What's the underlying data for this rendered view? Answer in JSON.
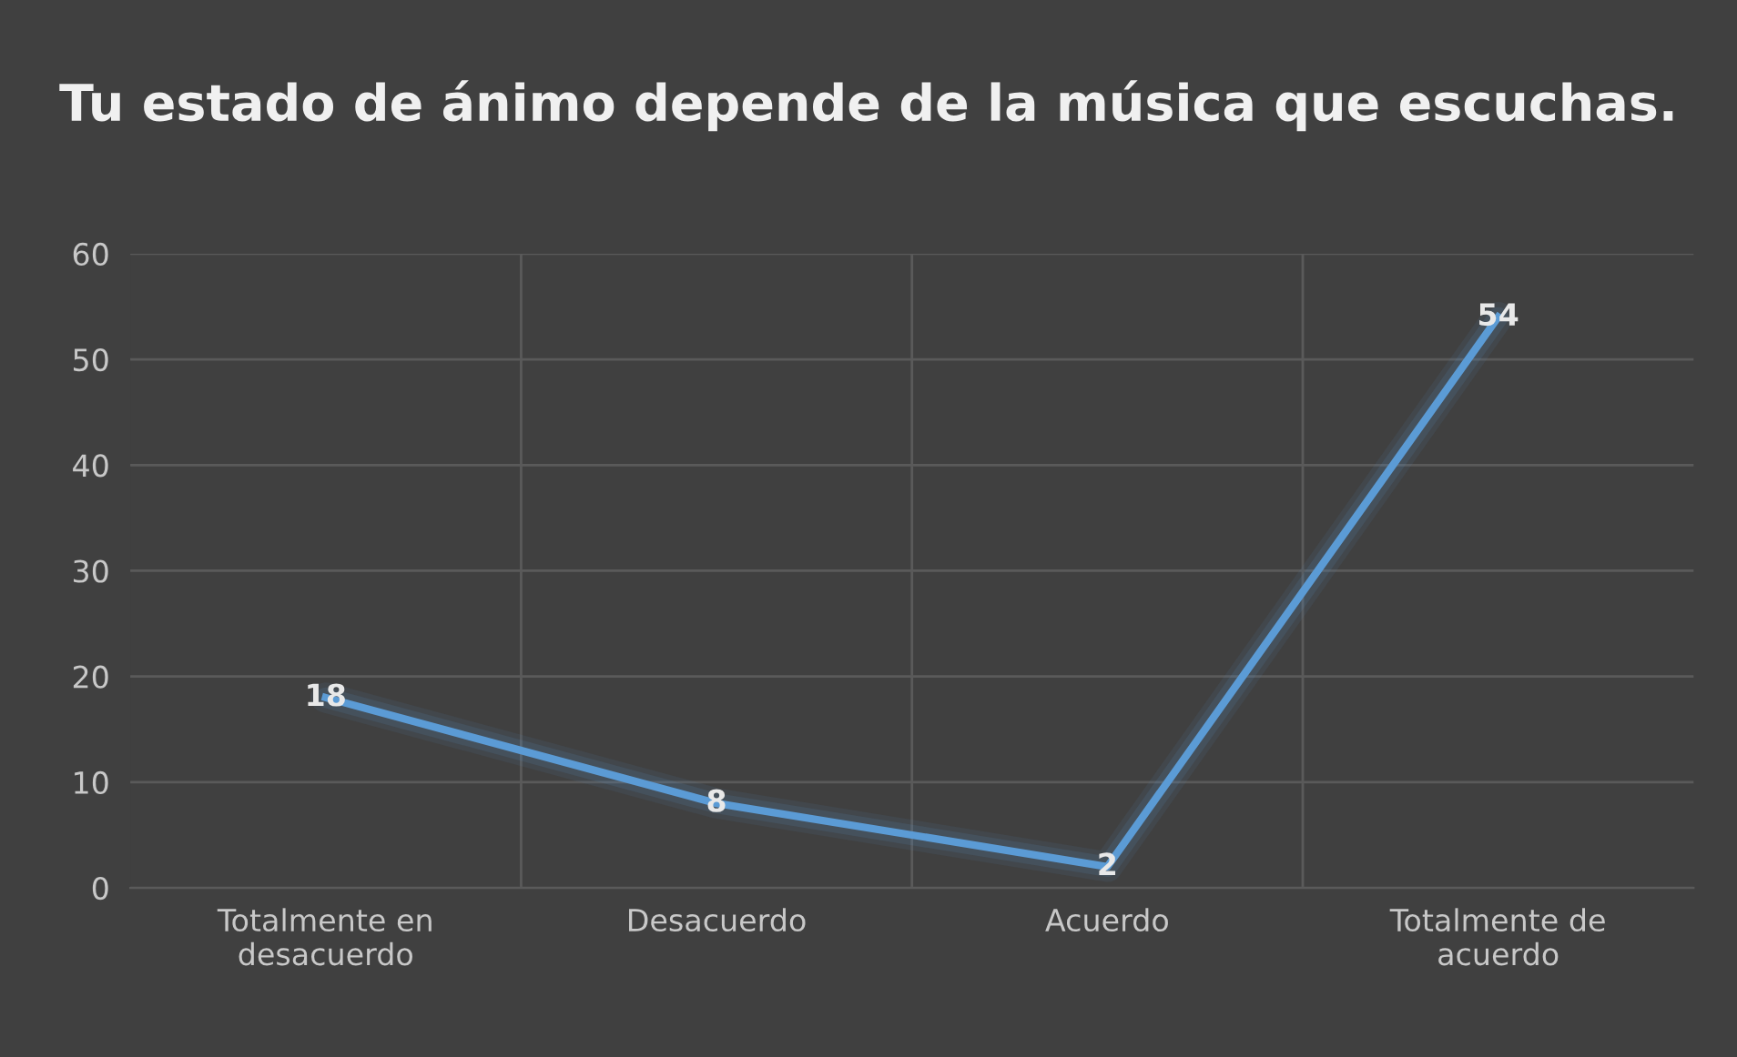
{
  "chart_data": {
    "type": "line",
    "title": "Tu estado de ánimo depende de la música que escuchas.",
    "categories": [
      "Totalmente en\ndesacuerdo",
      "Desacuerdo",
      "Acuerdo",
      "Totalmente de\nacuerdo"
    ],
    "values": [
      18,
      8,
      2,
      54
    ],
    "color": "#5b9bd5",
    "ylim": [
      0,
      60
    ],
    "yticks": [
      0,
      10,
      20,
      30,
      40,
      50,
      60
    ],
    "grid": true,
    "data_labels": true,
    "marker": "none",
    "line_style": "solid"
  }
}
